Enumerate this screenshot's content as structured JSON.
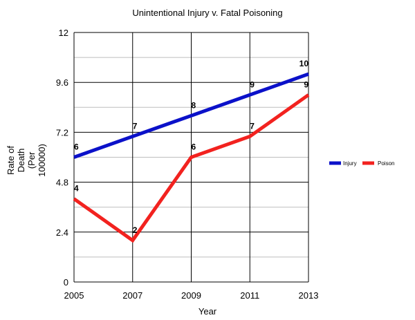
{
  "chart_data": {
    "type": "line",
    "title": "Unintentional Injury v. Fatal Poisoning",
    "xlabel": "Year",
    "ylabel_lines": [
      "Rate of",
      "Death",
      "(Per",
      "100000)"
    ],
    "categories": [
      "2005",
      "2007",
      "2009",
      "2011",
      "2013"
    ],
    "ylim": [
      0,
      12
    ],
    "yticks": [
      "0",
      "2.4",
      "4.8",
      "7.2",
      "9.6",
      "12"
    ],
    "grid": true,
    "legend_position": "right",
    "series": [
      {
        "name": "Injury",
        "color": "#0b11c9",
        "values": [
          6,
          7,
          8,
          9,
          10
        ],
        "labels": [
          "6",
          "7",
          "8",
          "9",
          "10"
        ]
      },
      {
        "name": "Poison",
        "color": "#f2221f",
        "values": [
          4,
          2,
          6,
          7,
          9
        ],
        "labels": [
          "4",
          "2",
          "6",
          "7",
          "9"
        ]
      }
    ]
  }
}
